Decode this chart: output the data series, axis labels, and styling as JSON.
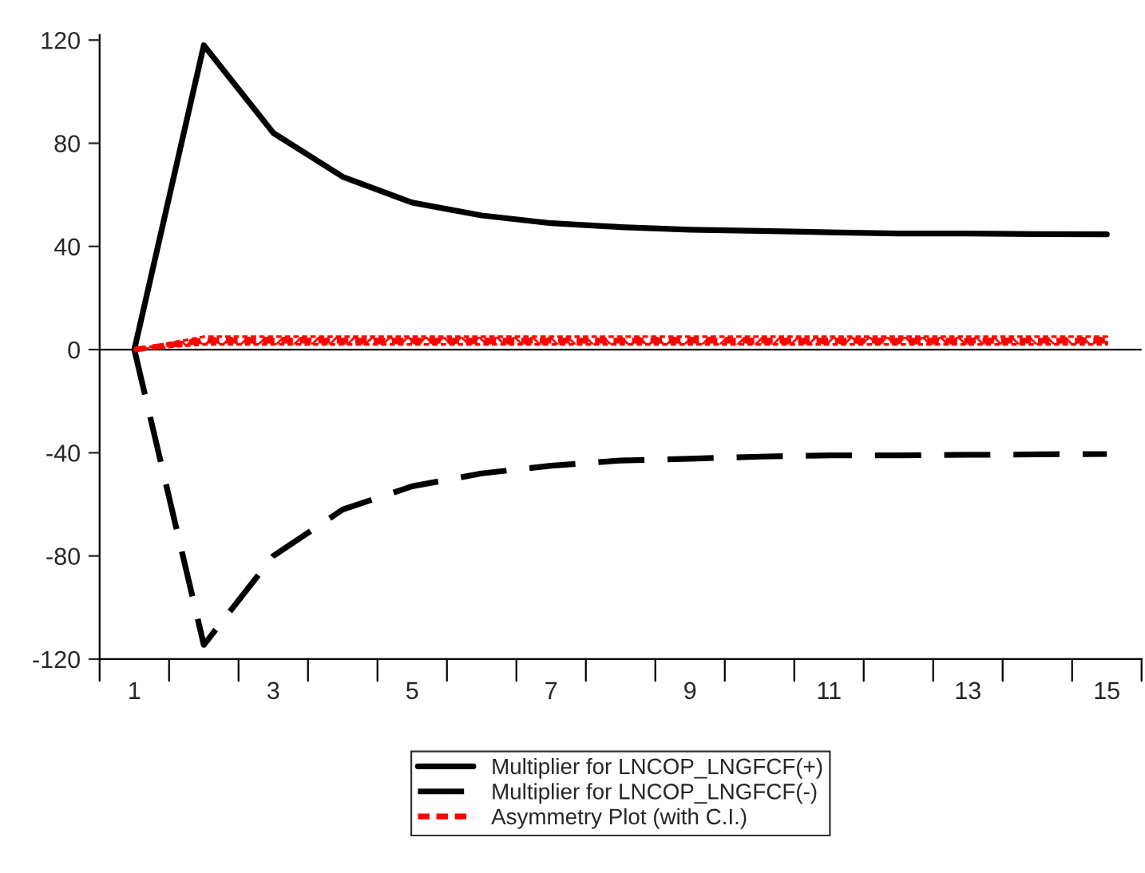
{
  "chart_data": {
    "type": "line",
    "categories": [
      "1",
      null,
      "3",
      null,
      "5",
      null,
      "7",
      null,
      "9",
      null,
      "11",
      null,
      "13",
      null,
      "15"
    ],
    "ylim": [
      -120,
      122
    ],
    "yticks": [
      -120,
      -80,
      -40,
      0,
      40,
      80,
      120
    ],
    "grid": false,
    "legend": "bottom",
    "marker": "none",
    "ref_lines": [
      {
        "axis": "y",
        "value": 0,
        "color": "#000000",
        "line_style": "solid"
      }
    ],
    "series": [
      {
        "name": "Multiplier for LNCOP_LNGFCF(+)",
        "color": "#000000",
        "line_style": "solid",
        "values": [
          0,
          118,
          84,
          67,
          57,
          52,
          49,
          47.5,
          46.5,
          46,
          45.5,
          45,
          45,
          44.8,
          44.7
        ]
      },
      {
        "name": "Multiplier for LNCOP_LNGFCF(-)",
        "color": "#000000",
        "line_style": "dashed",
        "values": [
          0,
          -114.5,
          -80,
          -62,
          -53,
          -48,
          -45,
          -43,
          -42.3,
          -41.5,
          -41,
          -41,
          -40.8,
          -40.6,
          -40.5
        ]
      },
      {
        "name": "Asymmetry Plot (with C.I.)",
        "color": "#ff0000",
        "line_style": "dotted",
        "values": [
          0,
          3.5,
          3.5,
          3.5,
          3.5,
          3.5,
          3.5,
          3.5,
          3.5,
          3.5,
          3.5,
          3.5,
          3.5,
          3.5,
          3.5
        ],
        "lower": [
          0,
          2,
          2,
          2,
          2,
          2,
          2,
          2,
          2,
          2,
          2,
          2,
          2,
          2,
          2
        ],
        "upper": [
          0,
          5,
          5,
          5,
          5,
          5,
          5,
          5,
          5,
          5,
          5,
          5,
          5,
          5,
          5
        ]
      }
    ]
  }
}
